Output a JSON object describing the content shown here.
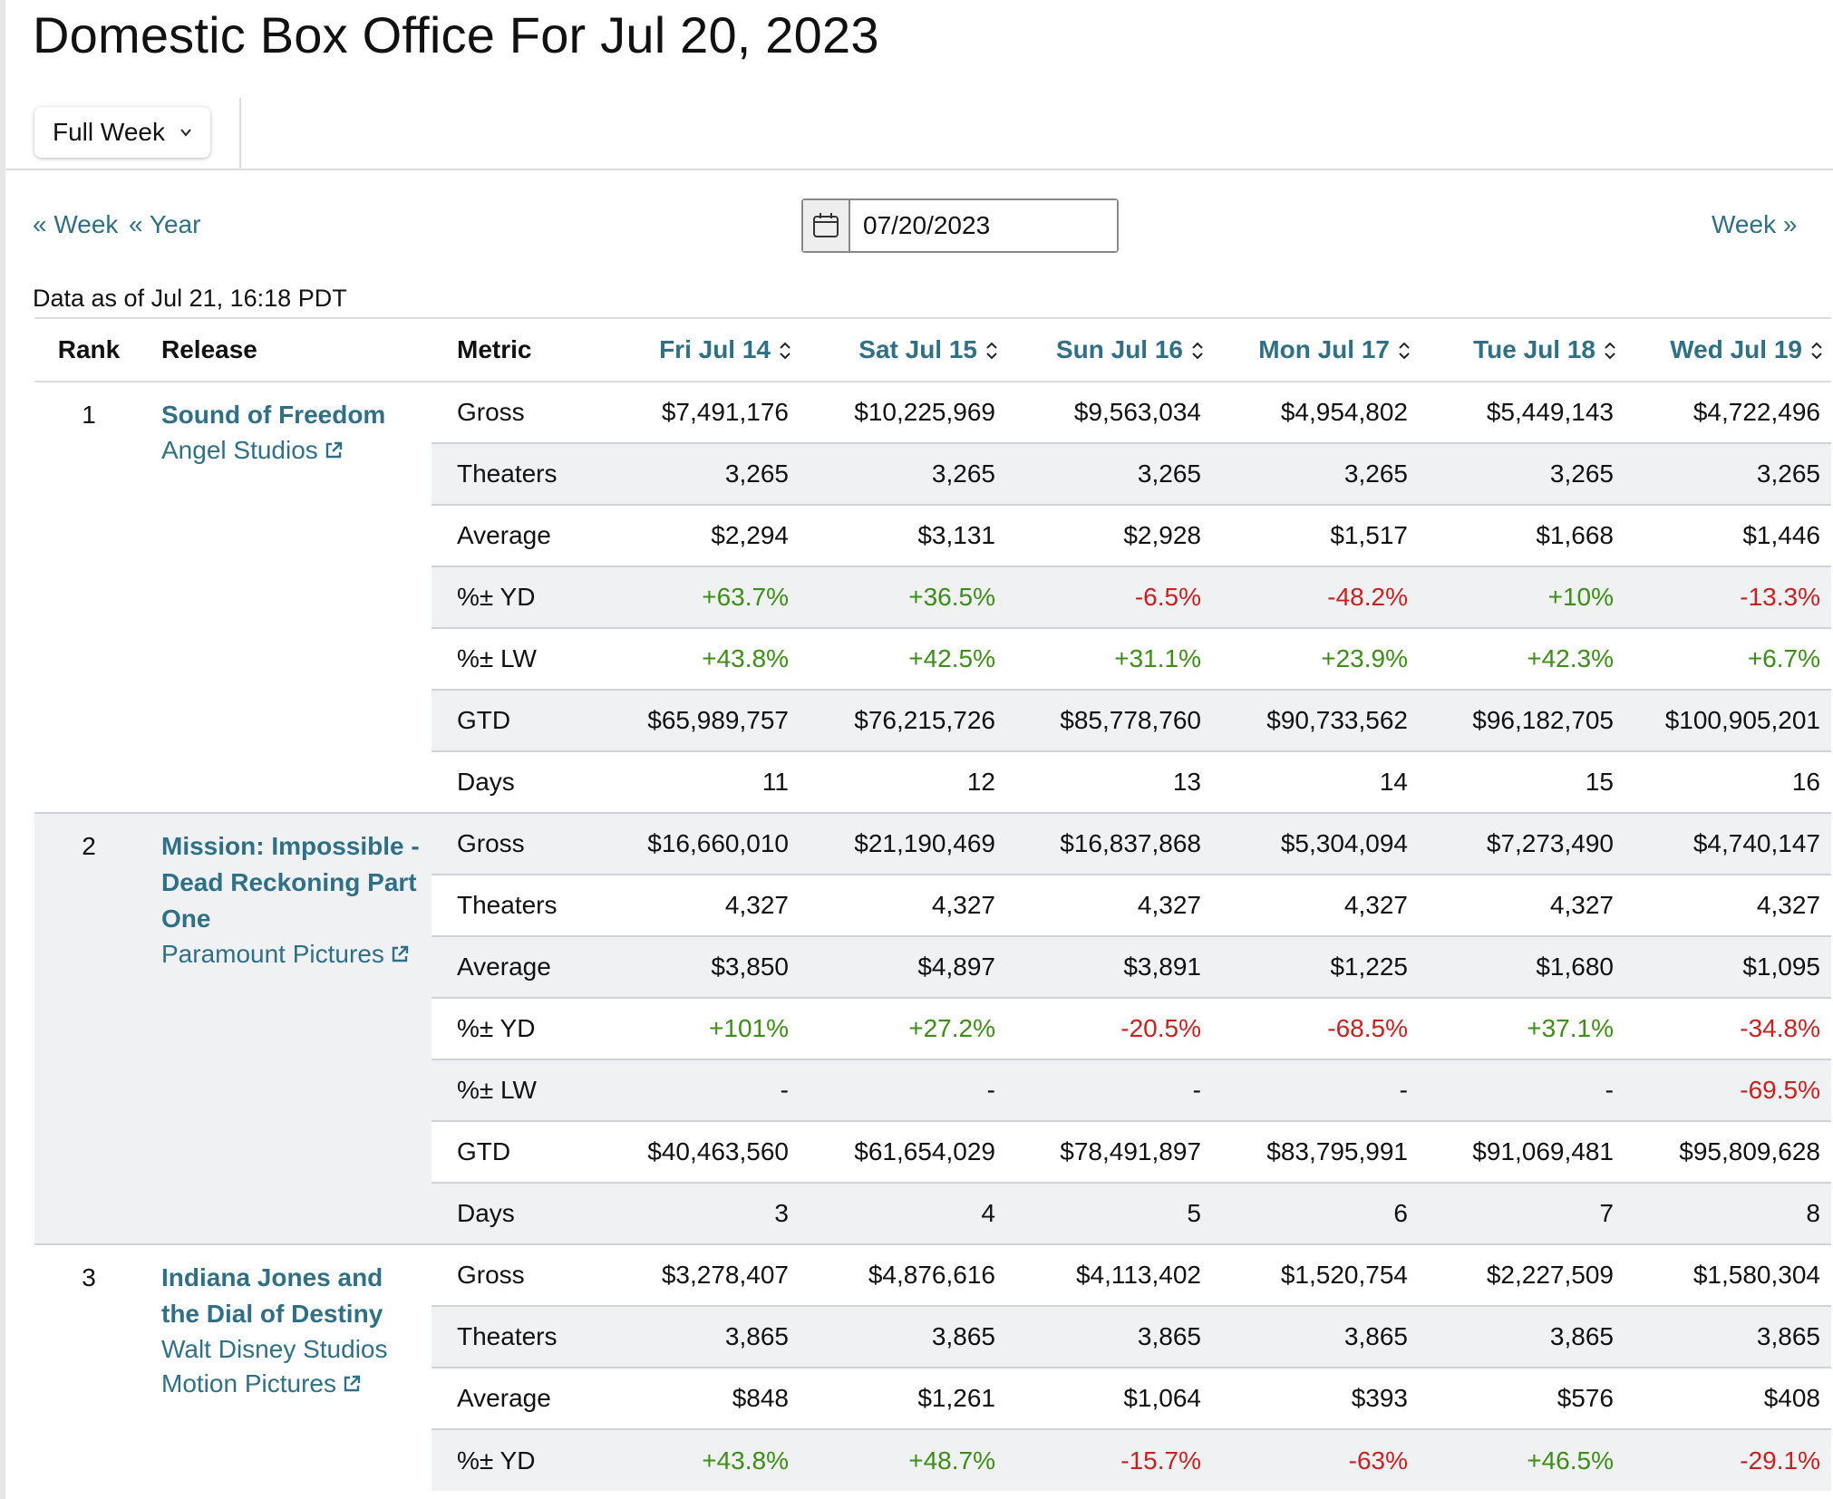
{
  "header": {
    "title": "Domestic Box Office For Jul 20, 2023",
    "view_select": "Full Week"
  },
  "nav": {
    "prev_week": "« Week",
    "prev_year": "« Year",
    "next_week": "Week »",
    "date_value": "07/20/2023"
  },
  "data_as_of": "Data as of Jul 21, 16:18 PDT",
  "table": {
    "headers": {
      "rank": "Rank",
      "release": "Release",
      "metric": "Metric",
      "days": [
        "Fri Jul 14",
        "Sat Jul 15",
        "Sun Jul 16",
        "Mon Jul 17",
        "Tue Jul 18",
        "Wed Jul 19"
      ]
    },
    "movies": [
      {
        "rank": "1",
        "title": "Sound of Freedom",
        "distributor": "Angel Studios",
        "metrics": [
          {
            "name": "Gross",
            "values": [
              "$7,491,176",
              "$10,225,969",
              "$9,563,034",
              "$4,954,802",
              "$5,449,143",
              "$4,722,496"
            ]
          },
          {
            "name": "Theaters",
            "values": [
              "3,265",
              "3,265",
              "3,265",
              "3,265",
              "3,265",
              "3,265"
            ]
          },
          {
            "name": "Average",
            "values": [
              "$2,294",
              "$3,131",
              "$2,928",
              "$1,517",
              "$1,668",
              "$1,446"
            ]
          },
          {
            "name": "%± YD",
            "values": [
              "+63.7%",
              "+36.5%",
              "-6.5%",
              "-48.2%",
              "+10%",
              "-13.3%"
            ]
          },
          {
            "name": "%± LW",
            "values": [
              "+43.8%",
              "+42.5%",
              "+31.1%",
              "+23.9%",
              "+42.3%",
              "+6.7%"
            ]
          },
          {
            "name": "GTD",
            "values": [
              "$65,989,757",
              "$76,215,726",
              "$85,778,760",
              "$90,733,562",
              "$96,182,705",
              "$100,905,201"
            ]
          },
          {
            "name": "Days",
            "values": [
              "11",
              "12",
              "13",
              "14",
              "15",
              "16"
            ]
          }
        ]
      },
      {
        "rank": "2",
        "title": "Mission: Impossible - Dead Reckoning Part One",
        "distributor": "Paramount Pictures",
        "metrics": [
          {
            "name": "Gross",
            "values": [
              "$16,660,010",
              "$21,190,469",
              "$16,837,868",
              "$5,304,094",
              "$7,273,490",
              "$4,740,147"
            ]
          },
          {
            "name": "Theaters",
            "values": [
              "4,327",
              "4,327",
              "4,327",
              "4,327",
              "4,327",
              "4,327"
            ]
          },
          {
            "name": "Average",
            "values": [
              "$3,850",
              "$4,897",
              "$3,891",
              "$1,225",
              "$1,680",
              "$1,095"
            ]
          },
          {
            "name": "%± YD",
            "values": [
              "+101%",
              "+27.2%",
              "-20.5%",
              "-68.5%",
              "+37.1%",
              "-34.8%"
            ]
          },
          {
            "name": "%± LW",
            "values": [
              "-",
              "-",
              "-",
              "-",
              "-",
              "-69.5%"
            ]
          },
          {
            "name": "GTD",
            "values": [
              "$40,463,560",
              "$61,654,029",
              "$78,491,897",
              "$83,795,991",
              "$91,069,481",
              "$95,809,628"
            ]
          },
          {
            "name": "Days",
            "values": [
              "3",
              "4",
              "5",
              "6",
              "7",
              "8"
            ]
          }
        ]
      },
      {
        "rank": "3",
        "title": "Indiana Jones and the Dial of Destiny",
        "distributor": "Walt Disney Studios Motion Pictures",
        "metrics": [
          {
            "name": "Gross",
            "values": [
              "$3,278,407",
              "$4,876,616",
              "$4,113,402",
              "$1,520,754",
              "$2,227,509",
              "$1,580,304"
            ]
          },
          {
            "name": "Theaters",
            "values": [
              "3,865",
              "3,865",
              "3,865",
              "3,865",
              "3,865",
              "3,865"
            ]
          },
          {
            "name": "Average",
            "values": [
              "$848",
              "$1,261",
              "$1,064",
              "$393",
              "$576",
              "$408"
            ]
          },
          {
            "name": "%± YD",
            "values": [
              "+43.8%",
              "+48.7%",
              "-15.7%",
              "-63%",
              "+46.5%",
              "-29.1%"
            ]
          }
        ]
      }
    ]
  },
  "colors": {
    "link": "#2f7087",
    "positive": "#3c8e16",
    "negative": "#cc1f1f",
    "row_alt": "#eff1f3"
  },
  "icons": {
    "calendar": "calendar-icon",
    "chevron": "chevron-down-icon",
    "external_link": "external-link-icon",
    "sort": "sort-icon"
  }
}
